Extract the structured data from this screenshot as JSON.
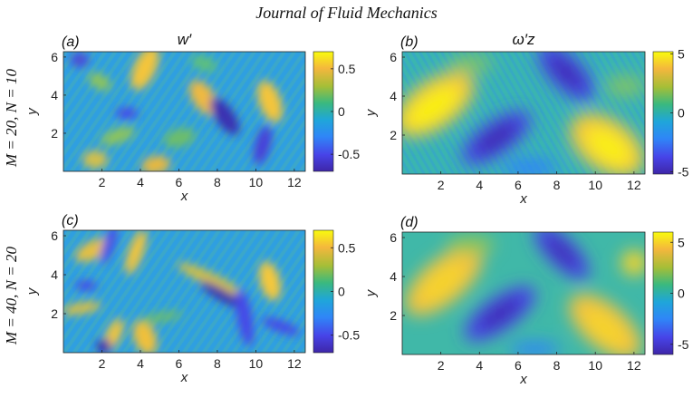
{
  "header": {
    "journal": "Journal of Fluid Mechanics"
  },
  "rows": [
    {
      "label": "M = 20, N = 10"
    },
    {
      "label": "M = 40, N = 20"
    }
  ],
  "chart_data": [
    {
      "type": "heatmap",
      "panel_label": "(a)",
      "title": "w′",
      "xlabel": "x",
      "ylabel": "y",
      "x_ticks": [
        "2",
        "4",
        "6",
        "8",
        "10",
        "12"
      ],
      "y_ticks": [
        "2",
        "4",
        "6"
      ],
      "xlim": [
        0,
        12.57
      ],
      "ylim": [
        0,
        6.28
      ],
      "colorbar": {
        "ticks": [
          "0.5",
          "0",
          "-0.5"
        ],
        "tick_values": [
          0.5,
          0,
          -0.5
        ],
        "range": [
          -0.7,
          0.7
        ]
      }
    },
    {
      "type": "heatmap",
      "panel_label": "(b)",
      "title": "ω′z",
      "xlabel": "x",
      "ylabel": "y",
      "x_ticks": [
        "2",
        "4",
        "6",
        "8",
        "10",
        "12"
      ],
      "y_ticks": [
        "2",
        "4",
        "6"
      ],
      "xlim": [
        0,
        12.57
      ],
      "ylim": [
        0,
        6.28
      ],
      "colorbar": {
        "ticks": [
          "5",
          "0",
          "-5"
        ],
        "tick_values": [
          5,
          0,
          -5
        ],
        "range": [
          -5.2,
          5.2
        ]
      }
    },
    {
      "type": "heatmap",
      "panel_label": "(c)",
      "title": "",
      "xlabel": "x",
      "ylabel": "y",
      "x_ticks": [
        "2",
        "4",
        "6",
        "8",
        "10",
        "12"
      ],
      "y_ticks": [
        "2",
        "4",
        "6"
      ],
      "xlim": [
        0,
        12.57
      ],
      "ylim": [
        0,
        6.28
      ],
      "colorbar": {
        "ticks": [
          "0.5",
          "0",
          "-0.5"
        ],
        "tick_values": [
          0.5,
          0,
          -0.5
        ],
        "range": [
          -0.7,
          0.7
        ]
      }
    },
    {
      "type": "heatmap",
      "panel_label": "(d)",
      "title": "",
      "xlabel": "x",
      "ylabel": "y",
      "x_ticks": [
        "2",
        "4",
        "6",
        "8",
        "10",
        "12"
      ],
      "y_ticks": [
        "2",
        "4",
        "6"
      ],
      "xlim": [
        0,
        12.57
      ],
      "ylim": [
        0,
        6.28
      ],
      "colorbar": {
        "ticks": [
          "5",
          "0",
          "-5"
        ],
        "tick_values": [
          5,
          0,
          -5
        ],
        "range": [
          -6,
          6
        ]
      }
    }
  ],
  "colormap": [
    "#3e26a8",
    "#4744e8",
    "#2f86f7",
    "#1fa6d9",
    "#3ab97f",
    "#a5be37",
    "#f4b73d",
    "#f9fb0e"
  ]
}
